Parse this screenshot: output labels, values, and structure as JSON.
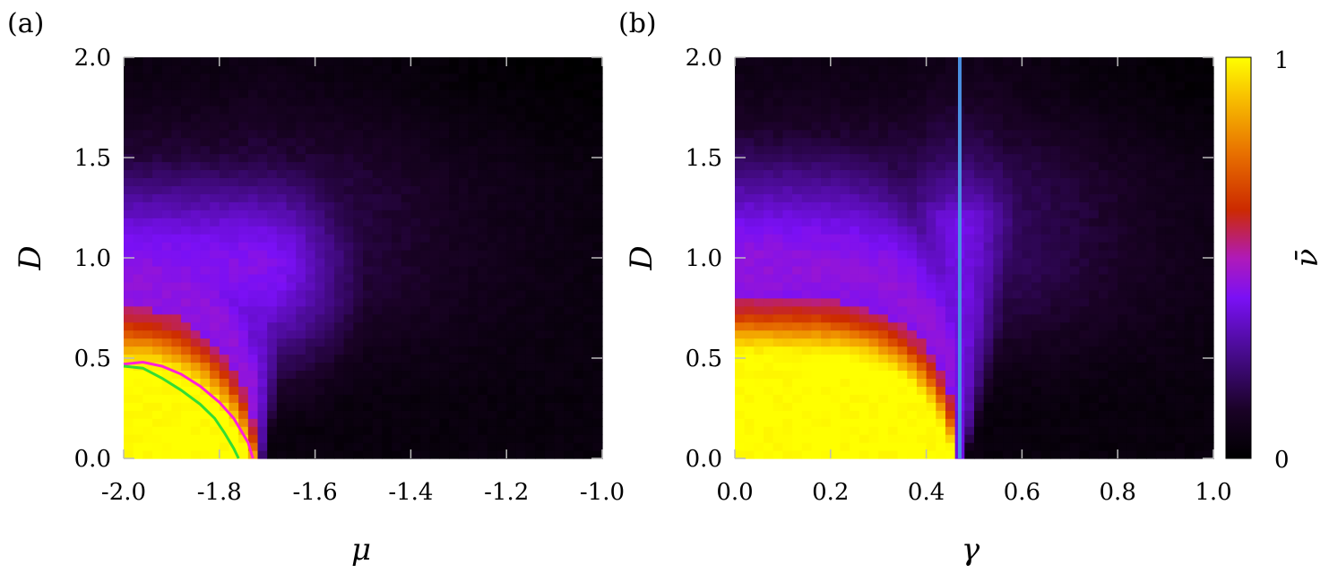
{
  "chart_data": [
    {
      "type": "heatmap",
      "panel_label": "(a)",
      "xlabel": "μ",
      "ylabel": "D",
      "xlim": [
        -2.0,
        -1.0
      ],
      "ylim": [
        0.0,
        2.0
      ],
      "xticks": [
        "-2.0",
        "-1.8",
        "-1.6",
        "-1.4",
        "-1.2",
        "-1.0"
      ],
      "xtick_values": [
        -2.0,
        -1.8,
        -1.6,
        -1.4,
        -1.2,
        -1.0
      ],
      "yticks": [
        "0.0",
        "0.5",
        "1.0",
        "1.5",
        "2.0"
      ],
      "ytick_values": [
        0.0,
        0.5,
        1.0,
        1.5,
        2.0
      ],
      "grid_resolution": [
        50,
        50
      ],
      "critical_mu": -1.72,
      "regions": [
        {
          "description": "high-activity region",
          "value": 1.0,
          "x_range": [
            -2.0,
            -1.75
          ],
          "y_range": [
            0.0,
            0.45
          ]
        },
        {
          "description": "decay boundary",
          "value": 0.55,
          "x_range": [
            -2.0,
            -1.72
          ],
          "y_range": [
            0.45,
            0.75
          ]
        }
      ],
      "curves": [
        {
          "color": "#ff1fd8",
          "x": [
            -2.0,
            -1.96,
            -1.92,
            -1.88,
            -1.84,
            -1.8,
            -1.77,
            -1.74,
            -1.73
          ],
          "y": [
            0.47,
            0.48,
            0.46,
            0.42,
            0.36,
            0.28,
            0.2,
            0.08,
            0.0
          ]
        },
        {
          "color": "#33dd33",
          "x": [
            -2.0,
            -1.96,
            -1.92,
            -1.88,
            -1.84,
            -1.81,
            -1.79,
            -1.77,
            -1.76
          ],
          "y": [
            0.46,
            0.45,
            0.4,
            0.34,
            0.27,
            0.2,
            0.13,
            0.05,
            0.0
          ]
        }
      ]
    },
    {
      "type": "heatmap",
      "panel_label": "(b)",
      "xlabel": "γ",
      "ylabel": "D",
      "xlim": [
        0.0,
        1.0
      ],
      "ylim": [
        0.0,
        2.0
      ],
      "xticks": [
        "0.0",
        "0.2",
        "0.4",
        "0.6",
        "0.8",
        "1.0"
      ],
      "xtick_values": [
        0.0,
        0.2,
        0.4,
        0.6,
        0.8,
        1.0
      ],
      "yticks": [
        "0.0",
        "0.5",
        "1.0",
        "1.5",
        "2.0"
      ],
      "ytick_values": [
        0.0,
        0.5,
        1.0,
        1.5,
        2.0
      ],
      "grid_resolution": [
        50,
        50
      ],
      "critical_gamma": 0.47,
      "vertical_line": {
        "x": 0.47,
        "color": "#4a90e2"
      },
      "regions": [
        {
          "description": "high-activity region",
          "value": 1.0,
          "x_range": [
            0.0,
            0.45
          ],
          "y_range": [
            0.0,
            0.5
          ]
        },
        {
          "description": "decay boundary",
          "value": 0.55,
          "x_range": [
            0.0,
            0.46
          ],
          "y_range": [
            0.5,
            0.8
          ]
        }
      ]
    }
  ],
  "colorbar": {
    "label": "ν̄",
    "min_label": "0",
    "max_label": "1",
    "colormap": "gnuplot-like (black→purple→red→orange→yellow)"
  }
}
